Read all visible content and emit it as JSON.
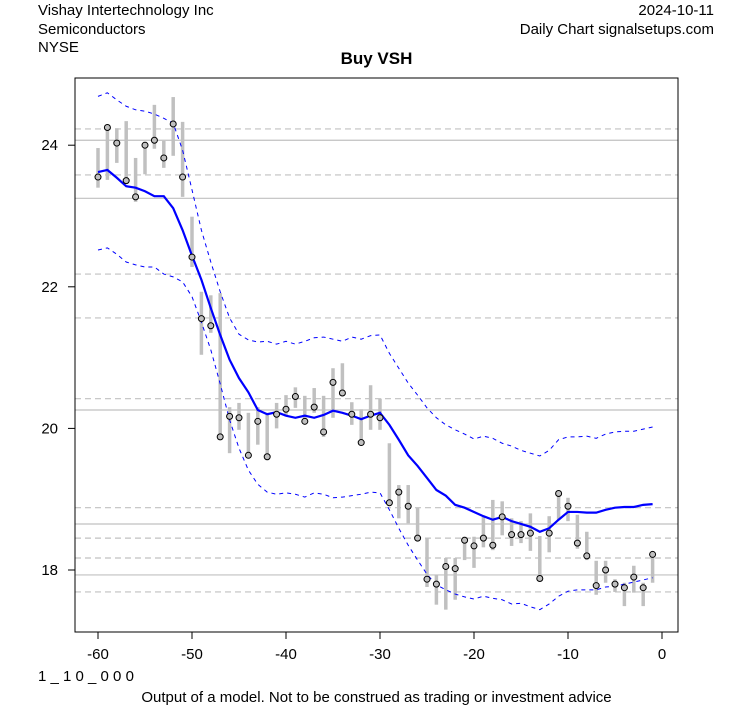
{
  "header": {
    "company": "Vishay Intertechnology Inc",
    "sector": "Semiconductors",
    "exchange": "NYSE",
    "date": "2024-10-11",
    "source": "Daily Chart signalsetups.com"
  },
  "footer": {
    "code": "1 _ 1 0 _ 0 0 0",
    "disclaimer": "Output of a model. Not to be construed as trading or investment advice"
  },
  "chart_data": {
    "type": "line",
    "title": "Buy VSH",
    "xlabel": "",
    "ylabel": "",
    "xlim": [
      -61.5,
      1.7
    ],
    "ylim": [
      17.15,
      25.0
    ],
    "x_ticks": [
      -60,
      -50,
      -40,
      -30,
      -20,
      -10,
      0
    ],
    "y_ticks": [
      18,
      20,
      22,
      24
    ],
    "grid": false,
    "colors": {
      "bars": "#c0c0c0",
      "ma": "#0000ff",
      "bands": "#0000ff",
      "hlines": "#c0c0c0"
    },
    "hlines_solid": [
      24.07,
      23.25,
      20.26,
      18.65,
      17.93
    ],
    "hlines_dashed": [
      24.23,
      23.58,
      22.18,
      21.56,
      20.42,
      18.88,
      18.45,
      18.17,
      17.69
    ],
    "x": [
      -60,
      -59,
      -58,
      -57,
      -56,
      -55,
      -54,
      -53,
      -52,
      -51,
      -50,
      -49,
      -48,
      -47,
      -46,
      -45,
      -44,
      -43,
      -42,
      -41,
      -40,
      -39,
      -38,
      -37,
      -36,
      -35,
      -34,
      -33,
      -32,
      -31,
      -30,
      -29,
      -28,
      -27,
      -26,
      -25,
      -24,
      -23,
      -22,
      -21,
      -20,
      -19,
      -18,
      -17,
      -16,
      -15,
      -14,
      -13,
      -12,
      -11,
      -10,
      -9,
      -8,
      -7,
      -6,
      -5,
      -4,
      -3,
      -2,
      -1
    ],
    "close": [
      23.55,
      24.25,
      24.03,
      23.5,
      23.27,
      24.0,
      24.07,
      23.82,
      24.3,
      23.55,
      22.42,
      21.55,
      21.45,
      19.88,
      20.17,
      20.15,
      19.62,
      20.1,
      19.6,
      20.2,
      20.27,
      20.45,
      20.1,
      20.3,
      19.95,
      20.65,
      20.5,
      20.2,
      19.8,
      20.2,
      20.15,
      18.95,
      19.1,
      18.9,
      18.45,
      17.87,
      17.8,
      18.05,
      18.02,
      18.42,
      18.34,
      18.45,
      18.35,
      18.75,
      18.5,
      18.5,
      18.52,
      17.88,
      18.52,
      19.08,
      18.9,
      18.38,
      18.2,
      17.78,
      18.0,
      17.8,
      17.75,
      17.9,
      17.75,
      18.22
    ],
    "high": [
      23.96,
      24.28,
      24.24,
      24.34,
      23.82,
      24.05,
      24.57,
      24.06,
      24.68,
      24.33,
      22.99,
      21.93,
      21.88,
      21.91,
      20.3,
      20.36,
      20.22,
      20.3,
      20.22,
      20.36,
      20.47,
      20.58,
      20.46,
      20.57,
      20.46,
      20.85,
      20.92,
      20.37,
      20.27,
      20.61,
      20.42,
      19.79,
      19.2,
      19.2,
      18.88,
      18.45,
      17.93,
      18.17,
      18.17,
      18.47,
      18.47,
      18.75,
      18.99,
      18.97,
      18.73,
      18.69,
      18.8,
      18.48,
      18.76,
      19.09,
      19.02,
      18.78,
      18.54,
      18.13,
      18.13,
      17.87,
      17.82,
      18.06,
      17.82,
      18.24
    ],
    "low": [
      23.4,
      23.51,
      23.75,
      23.47,
      23.2,
      23.59,
      23.95,
      23.68,
      23.85,
      23.27,
      22.28,
      21.04,
      21.35,
      19.84,
      19.65,
      19.98,
      19.58,
      19.77,
      19.55,
      20.0,
      20.17,
      20.29,
      20.09,
      20.22,
      19.88,
      20.15,
      20.47,
      20.05,
      19.77,
      19.98,
      19.98,
      18.92,
      18.73,
      18.66,
      18.42,
      17.76,
      17.51,
      17.44,
      17.58,
      18.14,
      18.03,
      18.32,
      18.28,
      18.49,
      18.34,
      18.38,
      18.27,
      17.86,
      18.25,
      18.71,
      18.69,
      18.3,
      18.14,
      17.65,
      17.82,
      17.69,
      17.49,
      17.68,
      17.49,
      17.82
    ],
    "series": [
      {
        "values": [
          23.62,
          23.65,
          23.54,
          23.42,
          23.4,
          23.35,
          23.28,
          23.28,
          23.11,
          22.8,
          22.44,
          22.1,
          21.7,
          21.32,
          20.97,
          20.71,
          20.51,
          20.26,
          20.2,
          20.23,
          20.18,
          20.15,
          20.18,
          20.15,
          20.19,
          20.25,
          20.22,
          20.18,
          20.13,
          20.18,
          20.22,
          20.05,
          19.84,
          19.62,
          19.47,
          19.3,
          19.13,
          19.05,
          18.92,
          18.88,
          18.82,
          18.76,
          18.71,
          18.75,
          18.69,
          18.65,
          18.61,
          18.54,
          18.59,
          18.71,
          18.82,
          18.82,
          18.81,
          18.81,
          18.85,
          18.88,
          18.89,
          18.89,
          18.92,
          18.93
        ]
      },
      {
        "values": [
          24.69,
          24.74,
          24.64,
          24.55,
          24.5,
          24.48,
          24.44,
          24.38,
          24.31,
          23.93,
          23.37,
          22.8,
          22.35,
          21.93,
          21.56,
          21.33,
          21.25,
          21.22,
          21.23,
          21.19,
          21.23,
          21.19,
          21.23,
          21.28,
          21.29,
          21.26,
          21.23,
          21.29,
          21.26,
          21.31,
          21.32,
          21.06,
          20.85,
          20.64,
          20.47,
          20.29,
          20.15,
          20.05,
          19.98,
          19.92,
          19.85,
          19.89,
          19.86,
          19.79,
          19.75,
          19.69,
          19.65,
          19.61,
          19.69,
          19.84,
          19.88,
          19.88,
          19.89,
          19.86,
          19.92,
          19.95,
          19.96,
          19.96,
          19.99,
          20.02
        ]
      },
      {
        "values": [
          22.52,
          22.55,
          22.46,
          22.35,
          22.31,
          22.28,
          22.28,
          22.18,
          22.14,
          22.07,
          21.86,
          21.5,
          21.11,
          20.63,
          20.12,
          19.72,
          19.41,
          19.21,
          19.1,
          19.07,
          19.09,
          19.07,
          19.03,
          19.09,
          19.07,
          19.02,
          19.03,
          19.05,
          19.07,
          19.1,
          19.09,
          18.85,
          18.59,
          18.35,
          18.14,
          17.94,
          17.79,
          17.72,
          17.66,
          17.62,
          17.59,
          17.63,
          17.6,
          17.58,
          17.52,
          17.53,
          17.48,
          17.44,
          17.52,
          17.63,
          17.7,
          17.72,
          17.72,
          17.72,
          17.76,
          17.77,
          17.8,
          17.83,
          17.86,
          17.89
        ]
      }
    ]
  }
}
